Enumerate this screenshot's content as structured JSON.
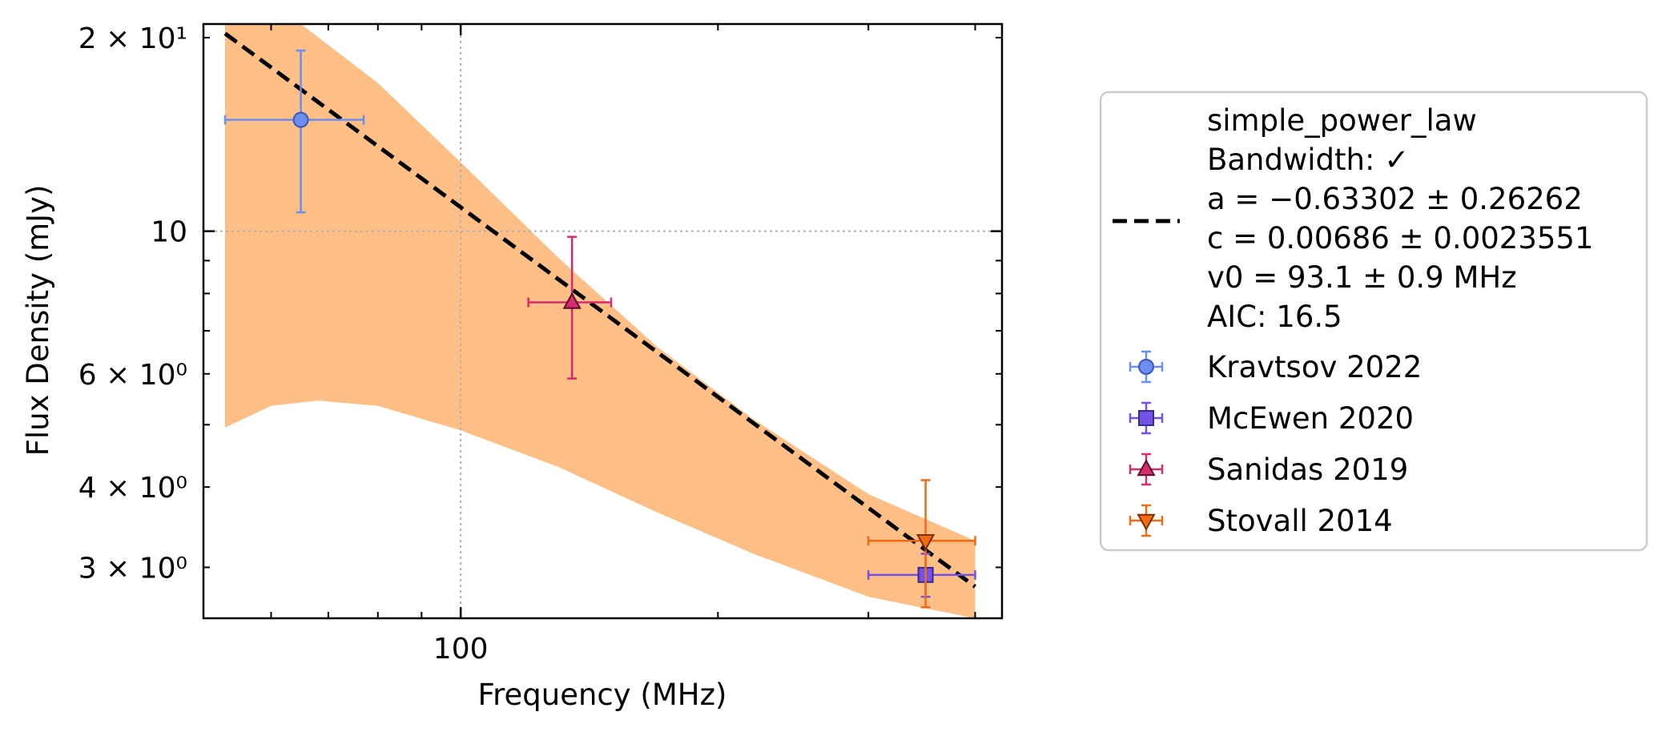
{
  "chart_data": {
    "type": "scatter",
    "xlabel": "Frequency (MHz)",
    "ylabel": "Flux Density (mJy)",
    "x_scale": "log",
    "y_scale": "log",
    "xlim": [
      50,
      430
    ],
    "ylim": [
      2.5,
      21
    ],
    "grid": true,
    "legend_position": "right, outside plot",
    "x_ticks": [
      {
        "value": 100,
        "label": "100"
      }
    ],
    "y_ticks": [
      {
        "value": 20,
        "label": "2 × 10¹"
      },
      {
        "value": 10,
        "label": "10"
      },
      {
        "value": 6,
        "label": "6 × 10⁰"
      },
      {
        "value": 4,
        "label": "4 × 10⁰"
      },
      {
        "value": 3,
        "label": "3 × 10⁰"
      }
    ],
    "fit": {
      "model": "simple_power_law",
      "label_lines": [
        "simple_power_law",
        "Bandwidth: ✓",
        "a = −0.63302 ± 0.26262",
        "c = 0.00686 ± 0.0023551",
        "v0 = 93.1 ± 0.9 MHz",
        "AIC: 16.5"
      ],
      "x_range": [
        53,
        400
      ],
      "line": [
        {
          "x": 53,
          "y": 20.3
        },
        {
          "x": 400,
          "y": 2.8
        }
      ],
      "band_upper": [
        {
          "x": 53,
          "y": 21
        },
        {
          "x": 65,
          "y": 21
        },
        {
          "x": 80,
          "y": 17
        },
        {
          "x": 100,
          "y": 12.8
        },
        {
          "x": 130,
          "y": 9.1
        },
        {
          "x": 170,
          "y": 6.6
        },
        {
          "x": 220,
          "y": 5.1
        },
        {
          "x": 300,
          "y": 3.9
        },
        {
          "x": 400,
          "y": 3.3
        }
      ],
      "band_lower": [
        {
          "x": 53,
          "y": 4.95
        },
        {
          "x": 60,
          "y": 5.35
        },
        {
          "x": 68,
          "y": 5.45
        },
        {
          "x": 80,
          "y": 5.35
        },
        {
          "x": 100,
          "y": 4.9
        },
        {
          "x": 130,
          "y": 4.3
        },
        {
          "x": 170,
          "y": 3.65
        },
        {
          "x": 220,
          "y": 3.15
        },
        {
          "x": 300,
          "y": 2.7
        },
        {
          "x": 400,
          "y": 2.5
        }
      ],
      "line_color": "#000000",
      "band_color": "#fdbf86"
    },
    "series": [
      {
        "name": "Kravtsov 2022",
        "marker": "circle",
        "color": "#6b8ef0",
        "edge": "#3a56b8",
        "points": [
          {
            "x": 65,
            "xlo": 53,
            "xhi": 77,
            "y": 14.9,
            "ylo": 10.7,
            "yhi": 19.1
          }
        ]
      },
      {
        "name": "McEwen 2020",
        "marker": "square",
        "color": "#7353e6",
        "edge": "#3a2a8a",
        "points": [
          {
            "x": 350,
            "xlo": 300,
            "xhi": 400,
            "y": 2.92,
            "ylo": 2.7,
            "yhi": 3.15
          }
        ]
      },
      {
        "name": "Sanidas 2019",
        "marker": "triangle-up",
        "color": "#d62b6e",
        "edge": "#5a0f2a",
        "points": [
          {
            "x": 135,
            "xlo": 120,
            "xhi": 150,
            "y": 7.75,
            "ylo": 5.9,
            "yhi": 9.8
          }
        ]
      },
      {
        "name": "Stovall 2014",
        "marker": "triangle-down",
        "color": "#f26a12",
        "edge": "#7a3006",
        "points": [
          {
            "x": 350,
            "xlo": 300,
            "xhi": 400,
            "y": 3.3,
            "ylo": 2.6,
            "yhi": 4.1
          }
        ]
      }
    ]
  }
}
